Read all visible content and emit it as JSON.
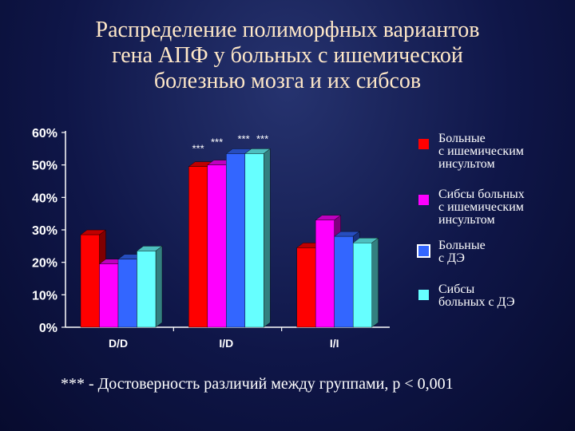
{
  "title_lines": [
    "Распределение полиморфных вариантов",
    "гена АПФ у больных с ишемической",
    "болезнью мозга и их сибсов"
  ],
  "chart_data": {
    "type": "bar",
    "categories": [
      "D/D",
      "I/D",
      "I/I"
    ],
    "ylim": [
      0,
      60
    ],
    "yticks": [
      0,
      10,
      20,
      30,
      40,
      50,
      60
    ],
    "ytick_labels": [
      "0%",
      "10%",
      "20%",
      "30%",
      "40%",
      "50%",
      "60%"
    ],
    "grid": false,
    "legend_position": "right",
    "series": [
      {
        "name": "Больные\nс ишемическим\nинсультом",
        "color": "#ff0000",
        "values": [
          28.5,
          49.5,
          24.5
        ]
      },
      {
        "name": "Сибсы больных\nс ишемическим\nинсультом",
        "color": "#ff00ff",
        "values": [
          19.5,
          50.0,
          33.0
        ]
      },
      {
        "name": "Больные\nс ДЭ",
        "color": "#3366ff",
        "values": [
          21.0,
          53.5,
          28.0
        ]
      },
      {
        "name": "Сибсы\nбольных с ДЭ",
        "color": "#66ffff",
        "values": [
          23.5,
          53.5,
          26.0
        ]
      }
    ],
    "annotations": [
      "***",
      "***",
      "***",
      "***"
    ]
  },
  "footnote": "*** - Достоверность различий между группами, p < 0,001"
}
